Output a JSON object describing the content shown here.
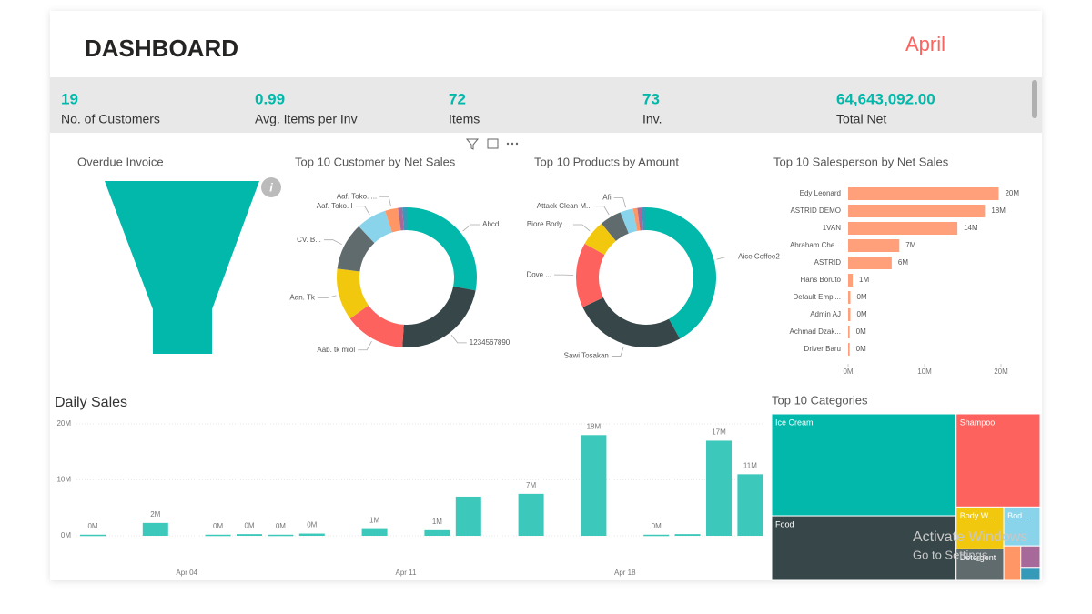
{
  "header": {
    "title": "DASHBOARD",
    "month": "April"
  },
  "kpis": [
    {
      "value": "19",
      "label": "No. of Customers"
    },
    {
      "value": "0.99",
      "label": "Avg. Items per Inv"
    },
    {
      "value": "72",
      "label": "Items"
    },
    {
      "value": "73",
      "label": "Inv."
    },
    {
      "value": "64,643,092.00",
      "label": "Total Net"
    }
  ],
  "funnel": {
    "title": "Overdue Invoice"
  },
  "customer_donut": {
    "type": "donut",
    "title": "Top 10 Customer by Net Sales",
    "categories": [
      "Abcd",
      "1234567890",
      "Aab. tk miol",
      "Aan. Tk",
      "CV. B...",
      "Aaf. Toko. I",
      "Aaf. Toko. ...",
      null,
      null
    ],
    "values": [
      28,
      23,
      14,
      12,
      11,
      7,
      3,
      1,
      1
    ],
    "colors": [
      "#01B8AA",
      "#374649",
      "#FD625E",
      "#F2C80F",
      "#5F6B6D",
      "#8AD4EB",
      "#FE9666",
      "#A66999",
      "#3599B8"
    ]
  },
  "product_donut": {
    "type": "donut",
    "title": "Top 10 Products by Amount",
    "categories": [
      "Aice Coffee2",
      "Sawi Tosakan",
      "Dove ...",
      "Biore Body ...",
      "Attack Clean M...",
      "Afi",
      null,
      null,
      null
    ],
    "values": [
      42,
      26,
      15,
      6,
      5,
      3,
      1,
      1,
      1
    ],
    "colors": [
      "#01B8AA",
      "#374649",
      "#FD625E",
      "#F2C80F",
      "#5F6B6D",
      "#8AD4EB",
      "#FE9666",
      "#A66999",
      "#3599B8"
    ]
  },
  "salesperson_bar": {
    "type": "hbar",
    "title": "Top 10 Salesperson by Net Sales",
    "categories": [
      "Edy Leonard",
      "ASTRID DEMO",
      "1VAN",
      "Abraham Che...",
      "ASTRID",
      "Hans Boruto",
      "Default Empl...",
      "Admin AJ",
      "Achmad Dzak...",
      "Driver Baru"
    ],
    "values": [
      19.7,
      17.9,
      14.3,
      6.7,
      5.7,
      0.6,
      0.3,
      0.3,
      0.2,
      0.2
    ],
    "value_labels": [
      "20M",
      "18M",
      "14M",
      "7M",
      "6M",
      "1M",
      "0M",
      "0M",
      "0M",
      "0M"
    ],
    "color": "#FFA07A",
    "xlim": [
      0,
      20
    ],
    "xticks": [
      {
        "value": 0,
        "label": "0M"
      },
      {
        "value": 10,
        "label": "10M"
      },
      {
        "value": 20,
        "label": "20M"
      }
    ]
  },
  "daily_sales": {
    "type": "bar",
    "title": "Daily Sales",
    "categories": [
      null,
      null,
      null,
      "Apr 04",
      null,
      null,
      null,
      null,
      null,
      null,
      "Apr 11",
      null,
      null,
      null,
      null,
      null,
      null,
      "Apr 18",
      null,
      null,
      null,
      null
    ],
    "values": [
      0.2,
      null,
      2.3,
      null,
      0.2,
      0.3,
      0.2,
      0.4,
      null,
      1.2,
      null,
      1.0,
      7.0,
      null,
      7.5,
      null,
      18,
      null,
      0.2,
      0.3,
      17,
      11
    ],
    "value_labels": [
      "0M",
      null,
      "2M",
      null,
      "0M",
      "0M",
      "0M",
      "0M",
      null,
      "1M",
      null,
      "1M",
      null,
      null,
      "7M",
      null,
      "18M",
      null,
      "0M",
      null,
      "17M",
      "11M"
    ],
    "color": "#3CC8BA",
    "ylim": [
      0,
      20
    ],
    "yticks": [
      {
        "value": 0,
        "label": "0M"
      },
      {
        "value": 10,
        "label": "10M"
      },
      {
        "value": 20,
        "label": "20M"
      }
    ],
    "grid": true
  },
  "treemap": {
    "type": "treemap",
    "title": "Top 10 Categories",
    "categories": [
      "Ice Cream",
      "Food",
      "Shampoo",
      "Body W...",
      "Detergent",
      "Bod...",
      null,
      null,
      null
    ],
    "values": [
      226,
      143,
      94,
      24,
      18,
      17,
      7,
      5,
      3
    ],
    "colors": [
      "#01B8AA",
      "#374649",
      "#FD625E",
      "#F2C80F",
      "#5F6B6D",
      "#8AD4EB",
      "#FE9666",
      "#A66999",
      "#3599B8"
    ]
  },
  "watermark": [
    "Activate Windows",
    "Go to Settings"
  ]
}
